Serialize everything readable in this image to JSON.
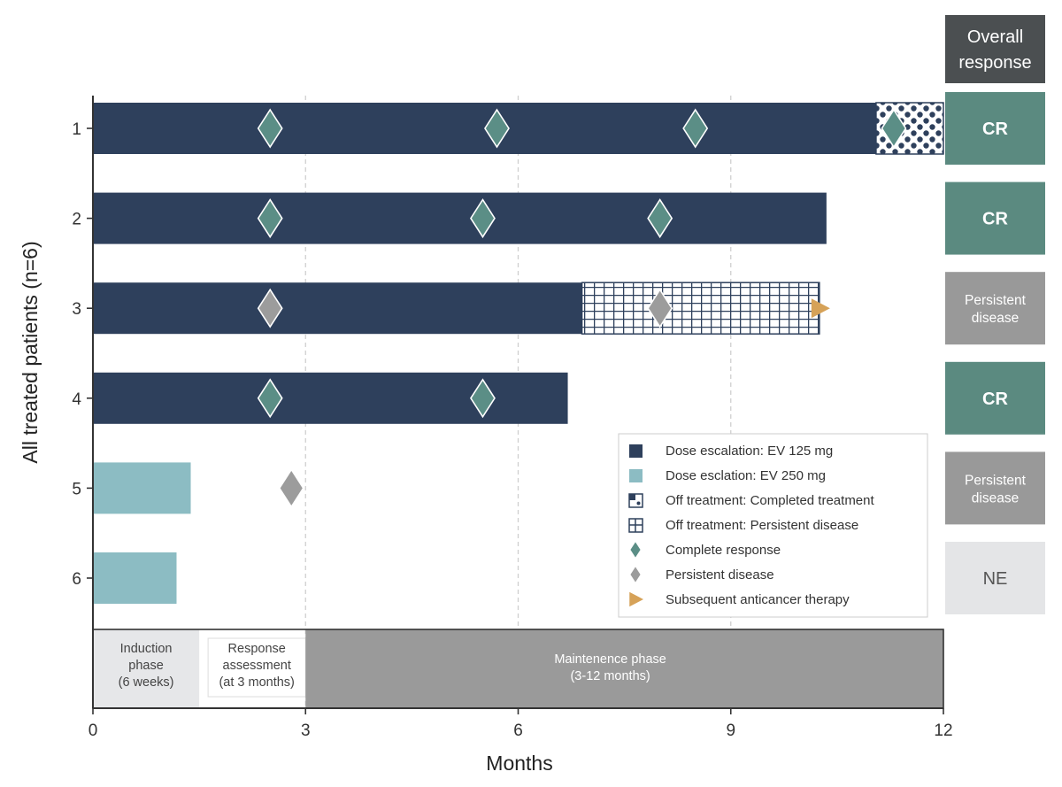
{
  "chart_data": {
    "type": "swimmer",
    "xlabel": "Months",
    "ylabel": "All treated patients (n=6)",
    "xlim": [
      0,
      12
    ],
    "xticks": [
      0,
      3,
      6,
      9,
      12
    ],
    "grid": "vertical dashed at 3, 6, 9",
    "overall_response_header": "Overall response",
    "patients": [
      {
        "id": "1",
        "segments": [
          {
            "kind": "ev125",
            "start": 0,
            "end": 11.05
          },
          {
            "kind": "off_completed",
            "start": 11.05,
            "end": 12
          }
        ],
        "events": [
          {
            "kind": "cr",
            "month": 2.5
          },
          {
            "kind": "cr",
            "month": 5.7
          },
          {
            "kind": "cr",
            "month": 8.5
          },
          {
            "kind": "cr",
            "month": 11.3
          }
        ],
        "response": "CR",
        "response_status": "cr"
      },
      {
        "id": "2",
        "segments": [
          {
            "kind": "ev125",
            "start": 0,
            "end": 10.35
          }
        ],
        "events": [
          {
            "kind": "cr",
            "month": 2.5
          },
          {
            "kind": "cr",
            "month": 5.5
          },
          {
            "kind": "cr",
            "month": 8.0
          }
        ],
        "response": "CR",
        "response_status": "cr"
      },
      {
        "id": "3",
        "segments": [
          {
            "kind": "ev125",
            "start": 0,
            "end": 6.9
          },
          {
            "kind": "off_persistent",
            "start": 6.9,
            "end": 10.25
          }
        ],
        "events": [
          {
            "kind": "pd",
            "month": 2.5
          },
          {
            "kind": "pd",
            "month": 8.0
          },
          {
            "kind": "sub",
            "month": 10.25
          }
        ],
        "response": "Persistent disease",
        "response_status": "pd"
      },
      {
        "id": "4",
        "segments": [
          {
            "kind": "ev125",
            "start": 0,
            "end": 6.7
          }
        ],
        "events": [
          {
            "kind": "cr",
            "month": 2.5
          },
          {
            "kind": "cr",
            "month": 5.5
          }
        ],
        "response": "CR",
        "response_status": "cr"
      },
      {
        "id": "5",
        "segments": [
          {
            "kind": "ev250",
            "start": 0,
            "end": 1.38
          }
        ],
        "events": [
          {
            "kind": "pd",
            "month": 2.8
          }
        ],
        "response": "Persistent disease",
        "response_status": "pd"
      },
      {
        "id": "6",
        "segments": [
          {
            "kind": "ev250",
            "start": 0,
            "end": 1.18
          }
        ],
        "events": [],
        "response": "NE",
        "response_status": "ne"
      }
    ],
    "legend": [
      {
        "kind": "ev125",
        "label": "Dose escalation: EV 125 mg"
      },
      {
        "kind": "ev250",
        "label": "Dose esclation: EV 250 mg"
      },
      {
        "kind": "off_completed",
        "label": "Off treatment: Completed treatment"
      },
      {
        "kind": "off_persistent",
        "label": "Off treatment: Persistent disease"
      },
      {
        "kind": "cr",
        "label": "Complete response"
      },
      {
        "kind": "pd",
        "label": "Persistent disease"
      },
      {
        "kind": "sub",
        "label": "Subsequent anticancer therapy"
      }
    ],
    "phases": [
      {
        "kind": "induction",
        "start": 0,
        "end": 1.5,
        "lines": [
          "Induction",
          "phase",
          "(6 weeks)"
        ]
      },
      {
        "kind": "assessment",
        "start": 1.5,
        "end": 3,
        "lines": [
          "Response",
          "assessment",
          "(at 3 months)"
        ]
      },
      {
        "kind": "maintenance",
        "start": 3,
        "end": 12,
        "lines": [
          "Maintenence phase",
          "(3-12 months)"
        ]
      }
    ],
    "colors": {
      "ev125": "#2e405c",
      "ev250": "#8cbcc3",
      "cr": "#5b8e86",
      "pd": "#9c9c9c",
      "sub": "#d6a258",
      "header": "#4b4f51",
      "resp_cr": "#5b8a80",
      "resp_pd": "#999999",
      "resp_ne": "#e4e5e7",
      "induction": "#e6e7e9",
      "maintenance": "#9a9a9a"
    }
  }
}
